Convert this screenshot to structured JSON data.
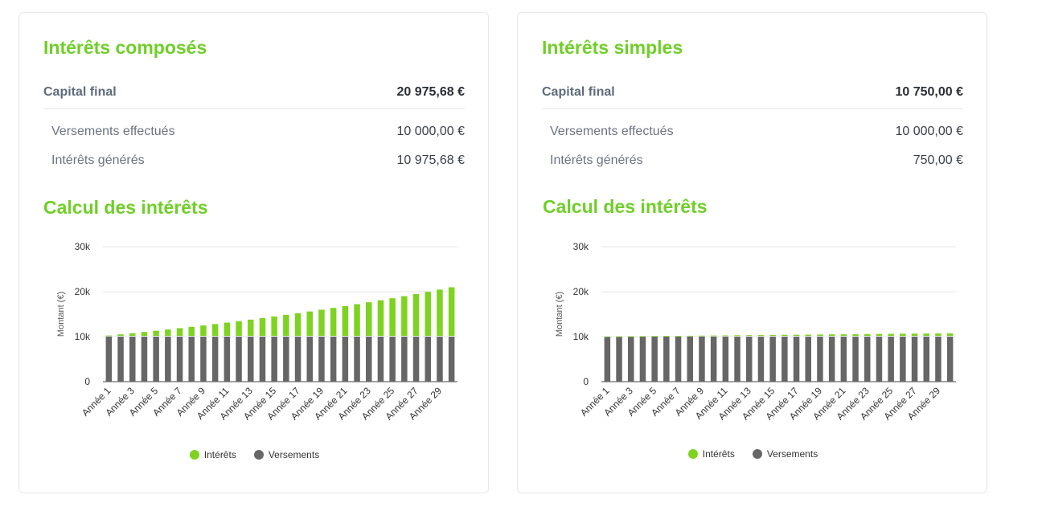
{
  "colors": {
    "accent": "#6fcf27",
    "interets": "#7ed321",
    "versements": "#666666"
  },
  "left": {
    "title": "Intérêts composés",
    "capital_label": "Capital final",
    "capital_value": "20 975,68 €",
    "versements_label": "Versements effectués",
    "versements_value": "10 000,00 €",
    "interets_label": "Intérêts générés",
    "interets_value": "10 975,68 €",
    "chart_title": "Calcul des intérêts",
    "legend": {
      "interets": "Intérêts",
      "versements": "Versements"
    }
  },
  "right": {
    "title": "Intérêts simples",
    "capital_label": "Capital final",
    "capital_value": "10 750,00 €",
    "versements_label": "Versements effectués",
    "versements_value": "10 000,00 €",
    "interets_label": "Intérêts générés",
    "interets_value": "750,00 €",
    "chart_title": "Calcul des intérêts",
    "legend": {
      "interets": "Intérêts",
      "versements": "Versements"
    }
  },
  "chart_data": [
    {
      "type": "bar",
      "stacked": true,
      "ylabel": "Montant (€)",
      "ylim": [
        0,
        30000
      ],
      "yticks": [
        "0",
        "10k",
        "20k",
        "30k"
      ],
      "ytick_values": [
        0,
        10000,
        20000,
        30000
      ],
      "grid": true,
      "legend_position": "bottom",
      "categories": [
        "Année 1",
        "Année 2",
        "Année 3",
        "Année 4",
        "Année 5",
        "Année 6",
        "Année 7",
        "Année 8",
        "Année 9",
        "Année 10",
        "Année 11",
        "Année 12",
        "Année 13",
        "Année 14",
        "Année 15",
        "Année 16",
        "Année 17",
        "Année 18",
        "Année 19",
        "Année 20",
        "Année 21",
        "Année 22",
        "Année 23",
        "Année 24",
        "Année 25",
        "Année 26",
        "Année 27",
        "Année 28",
        "Année 29",
        "Année 30"
      ],
      "series": [
        {
          "name": "Versements",
          "values": [
            10000,
            10000,
            10000,
            10000,
            10000,
            10000,
            10000,
            10000,
            10000,
            10000,
            10000,
            10000,
            10000,
            10000,
            10000,
            10000,
            10000,
            10000,
            10000,
            10000,
            10000,
            10000,
            10000,
            10000,
            10000,
            10000,
            10000,
            10000,
            10000,
            10000
          ]
        },
        {
          "name": "Intérêts",
          "values": [
            250,
            506,
            769,
            1038,
            1314,
            1597,
            1887,
            2184,
            2489,
            2801,
            3121,
            3449,
            3785,
            4130,
            4483,
            4845,
            5216,
            5597,
            5986,
            6386,
            6795,
            7215,
            7645,
            8086,
            8538,
            9001,
            9476,
            9963,
            10461,
            10976
          ]
        }
      ]
    },
    {
      "type": "bar",
      "stacked": true,
      "ylabel": "Montant (€)",
      "ylim": [
        0,
        30000
      ],
      "yticks": [
        "0",
        "10k",
        "20k",
        "30k"
      ],
      "ytick_values": [
        0,
        10000,
        20000,
        30000
      ],
      "grid": true,
      "legend_position": "bottom",
      "categories": [
        "Année 1",
        "Année 2",
        "Année 3",
        "Année 4",
        "Année 5",
        "Année 6",
        "Année 7",
        "Année 8",
        "Année 9",
        "Année 10",
        "Année 11",
        "Année 12",
        "Année 13",
        "Année 14",
        "Année 15",
        "Année 16",
        "Année 17",
        "Année 18",
        "Année 19",
        "Année 20",
        "Année 21",
        "Année 22",
        "Année 23",
        "Année 24",
        "Année 25",
        "Année 26",
        "Année 27",
        "Année 28",
        "Année 29",
        "Année 30"
      ],
      "series": [
        {
          "name": "Versements",
          "values": [
            10000,
            10000,
            10000,
            10000,
            10000,
            10000,
            10000,
            10000,
            10000,
            10000,
            10000,
            10000,
            10000,
            10000,
            10000,
            10000,
            10000,
            10000,
            10000,
            10000,
            10000,
            10000,
            10000,
            10000,
            10000,
            10000,
            10000,
            10000,
            10000,
            10000
          ]
        },
        {
          "name": "Intérêts",
          "values": [
            25,
            50,
            75,
            100,
            125,
            150,
            175,
            200,
            225,
            250,
            275,
            300,
            325,
            350,
            375,
            400,
            425,
            450,
            475,
            500,
            525,
            550,
            575,
            600,
            625,
            650,
            675,
            700,
            725,
            750
          ]
        }
      ]
    }
  ]
}
